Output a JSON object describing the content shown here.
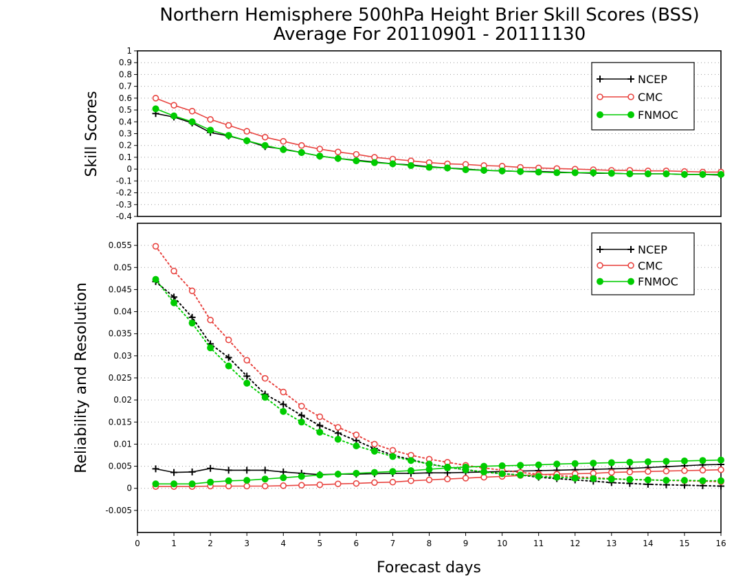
{
  "figure": {
    "title_line1": "Northern Hemisphere 500hPa Height Brier Skill Scores (BSS)",
    "title_line2": "Average For 20110901 - 20111130",
    "xlabel": "Forecast days"
  },
  "colors": {
    "NCEP": "#000000",
    "CMC": "#e8433f",
    "FNMOC": "#00cc00"
  },
  "chart_data": [
    {
      "type": "line",
      "ylabel": "Skill Scores",
      "xlim": [
        0,
        16
      ],
      "ylim": [
        -0.4,
        1
      ],
      "yticks": [
        1,
        0.9,
        0.8,
        0.7,
        0.6,
        0.5,
        0.4,
        0.3,
        0.2,
        0.1,
        0,
        -0.1,
        -0.2,
        -0.3,
        -0.4
      ],
      "ytick_labels": [
        "1",
        "0.9",
        "0.8",
        "0.7",
        "0.6",
        "0.5",
        "0.4",
        "0.3",
        "0.2",
        "0.1",
        "0",
        "-0.1",
        "-0.2",
        "-0.3",
        "-0.4"
      ],
      "legend_placement": "top-right",
      "grid": true,
      "x": [
        0.5,
        1,
        1.5,
        2,
        2.5,
        3,
        3.5,
        4,
        4.5,
        5,
        5.5,
        6,
        6.5,
        7,
        7.5,
        8,
        8.5,
        9,
        9.5,
        10,
        10.5,
        11,
        11.5,
        12,
        12.5,
        13,
        13.5,
        14,
        14.5,
        15,
        15.5,
        16
      ],
      "series": [
        {
          "name": "NCEP",
          "marker": "plus",
          "style": "solid",
          "values": [
            0.47,
            0.44,
            0.39,
            0.31,
            0.28,
            0.24,
            0.19,
            0.17,
            0.14,
            0.11,
            0.09,
            0.075,
            0.06,
            0.045,
            0.035,
            0.02,
            0.01,
            0.0,
            -0.01,
            -0.015,
            -0.02,
            -0.02,
            -0.025,
            -0.03,
            -0.035,
            -0.035,
            -0.04,
            -0.04,
            -0.04,
            -0.045,
            -0.045,
            -0.05
          ]
        },
        {
          "name": "CMC",
          "marker": "open-circle",
          "style": "solid",
          "values": [
            0.6,
            0.54,
            0.49,
            0.42,
            0.37,
            0.32,
            0.27,
            0.235,
            0.2,
            0.17,
            0.145,
            0.125,
            0.1,
            0.085,
            0.07,
            0.055,
            0.045,
            0.04,
            0.03,
            0.025,
            0.015,
            0.01,
            0.005,
            0.0,
            -0.005,
            -0.01,
            -0.01,
            -0.015,
            -0.015,
            -0.02,
            -0.025,
            -0.025
          ]
        },
        {
          "name": "FNMOC",
          "marker": "filled-circle",
          "style": "solid",
          "values": [
            0.51,
            0.45,
            0.4,
            0.33,
            0.285,
            0.24,
            0.2,
            0.165,
            0.14,
            0.11,
            0.09,
            0.07,
            0.055,
            0.045,
            0.03,
            0.015,
            0.01,
            -0.005,
            -0.01,
            -0.015,
            -0.02,
            -0.025,
            -0.03,
            -0.03,
            -0.03,
            -0.035,
            -0.04,
            -0.04,
            -0.04,
            -0.045,
            -0.045,
            -0.045
          ]
        }
      ]
    },
    {
      "type": "line",
      "ylabel": "Reliability and Resolution",
      "xlim": [
        0,
        16
      ],
      "ylim": [
        -0.01,
        0.06
      ],
      "yticks": [
        0.055,
        0.05,
        0.045,
        0.04,
        0.035,
        0.03,
        0.025,
        0.02,
        0.015,
        0.01,
        0.005,
        0,
        -0.005
      ],
      "ytick_labels": [
        "0.055",
        "0.05",
        "0.045",
        "0.04",
        "0.035",
        "0.03",
        "0.025",
        "0.02",
        "0.015",
        "0.01",
        "0.005",
        "0",
        "-0.005"
      ],
      "xticks": [
        0,
        1,
        2,
        3,
        4,
        5,
        6,
        7,
        8,
        9,
        10,
        11,
        12,
        13,
        14,
        15,
        16
      ],
      "xtick_labels": [
        "0",
        "1",
        "2",
        "3",
        "4",
        "5",
        "6",
        "7",
        "8",
        "9",
        "10",
        "11",
        "12",
        "13",
        "14",
        "15",
        "16"
      ],
      "legend_placement": "top-right",
      "grid": true,
      "x": [
        0.5,
        1,
        1.5,
        2,
        2.5,
        3,
        3.5,
        4,
        4.5,
        5,
        5.5,
        6,
        6.5,
        7,
        7.5,
        8,
        8.5,
        9,
        9.5,
        10,
        10.5,
        11,
        11.5,
        12,
        12.5,
        13,
        13.5,
        14,
        14.5,
        15,
        15.5,
        16
      ],
      "series": [
        {
          "name": "NCEP",
          "marker": "plus",
          "style": "dotted",
          "values": [
            0.0468,
            0.0433,
            0.0387,
            0.0327,
            0.0296,
            0.0254,
            0.0213,
            0.019,
            0.0165,
            0.0142,
            0.0125,
            0.0108,
            0.009,
            0.0075,
            0.0065,
            0.0055,
            0.0048,
            0.0042,
            0.0037,
            0.0033,
            0.003,
            0.0025,
            0.0022,
            0.0019,
            0.0016,
            0.0013,
            0.0011,
            0.0009,
            0.0008,
            0.0007,
            0.0006,
            0.0005
          ]
        },
        {
          "name": "NCEP",
          "marker": "plus",
          "style": "solid",
          "values": [
            0.0044,
            0.0036,
            0.0037,
            0.0045,
            0.0041,
            0.0041,
            0.0041,
            0.0037,
            0.0034,
            0.0031,
            0.0032,
            0.0032,
            0.0033,
            0.0034,
            0.0034,
            0.0035,
            0.0035,
            0.0036,
            0.0037,
            0.0038,
            0.0039,
            0.004,
            0.0041,
            0.0042,
            0.0043,
            0.0044,
            0.0045,
            0.0047,
            0.0049,
            0.0051,
            0.0053,
            0.0054
          ]
        },
        {
          "name": "CMC",
          "marker": "open-circle",
          "style": "dotted",
          "values": [
            0.0548,
            0.0492,
            0.0447,
            0.0381,
            0.0336,
            0.029,
            0.0249,
            0.0218,
            0.0186,
            0.0162,
            0.0138,
            0.0121,
            0.01,
            0.0086,
            0.0075,
            0.0066,
            0.0059,
            0.0052,
            0.0046,
            0.0041,
            0.0036,
            0.0032,
            0.0029,
            0.0026,
            0.0024,
            0.0022,
            0.002,
            0.0019,
            0.0018,
            0.0017,
            0.0016,
            0.0015
          ]
        },
        {
          "name": "CMC",
          "marker": "open-circle",
          "style": "solid",
          "values": [
            0.0004,
            0.0004,
            0.0004,
            0.0005,
            0.0005,
            0.0005,
            0.0005,
            0.0006,
            0.0007,
            0.0008,
            0.001,
            0.0011,
            0.0013,
            0.0014,
            0.0017,
            0.0019,
            0.0021,
            0.0023,
            0.0025,
            0.0027,
            0.0029,
            0.0031,
            0.0032,
            0.0033,
            0.0034,
            0.0036,
            0.0037,
            0.0038,
            0.0039,
            0.004,
            0.0041,
            0.0042
          ]
        },
        {
          "name": "FNMOC",
          "marker": "filled-circle",
          "style": "dotted",
          "values": [
            0.0473,
            0.042,
            0.0374,
            0.0318,
            0.0277,
            0.0238,
            0.0206,
            0.0174,
            0.015,
            0.0127,
            0.0111,
            0.0096,
            0.0084,
            0.0072,
            0.0063,
            0.0055,
            0.0048,
            0.0042,
            0.0037,
            0.0033,
            0.003,
            0.0027,
            0.0025,
            0.0023,
            0.0022,
            0.0021,
            0.002,
            0.0019,
            0.0018,
            0.0018,
            0.0017,
            0.0017
          ]
        },
        {
          "name": "FNMOC",
          "marker": "filled-circle",
          "style": "solid",
          "values": [
            0.001,
            0.001,
            0.001,
            0.0014,
            0.0017,
            0.0018,
            0.0021,
            0.0024,
            0.0027,
            0.003,
            0.0032,
            0.0034,
            0.0036,
            0.0038,
            0.004,
            0.0043,
            0.0046,
            0.0048,
            0.005,
            0.0051,
            0.0052,
            0.0053,
            0.0055,
            0.0056,
            0.0057,
            0.0058,
            0.0059,
            0.006,
            0.0061,
            0.0062,
            0.0063,
            0.0064
          ]
        }
      ]
    }
  ]
}
